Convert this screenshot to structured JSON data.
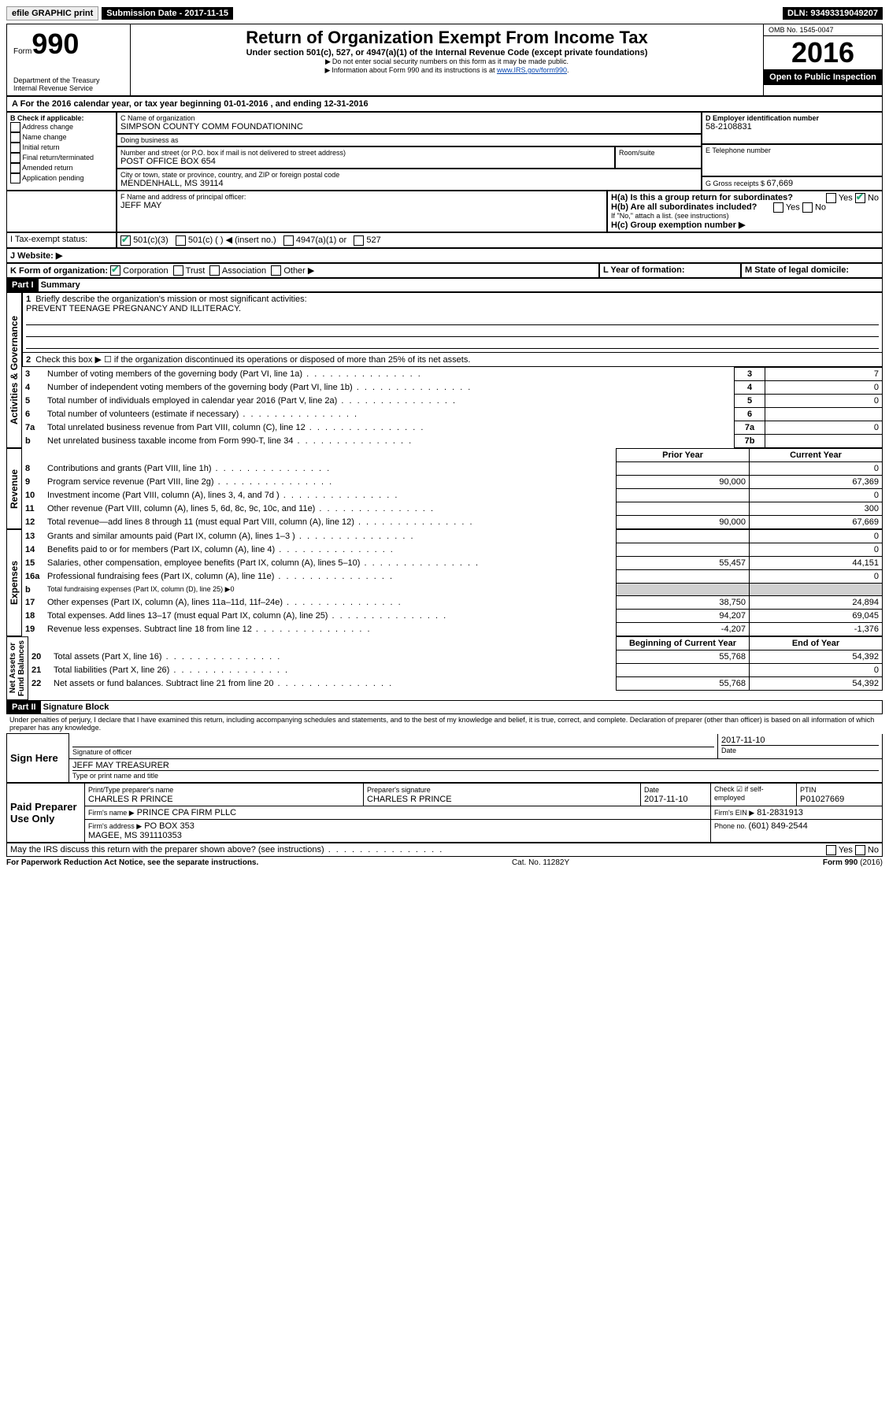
{
  "topbar": {
    "efile": "efile GRAPHIC print",
    "subdate_lbl": "Submission Date - ",
    "subdate": "2017-11-15",
    "dln_lbl": "DLN: ",
    "dln": "93493319049207"
  },
  "header": {
    "form_word": "Form",
    "form_no": "990",
    "dept": "Department of the Treasury\nInternal Revenue Service",
    "title": "Return of Organization Exempt From Income Tax",
    "subtitle": "Under section 501(c), 527, or 4947(a)(1) of the Internal Revenue Code (except private foundations)",
    "note1": "Do not enter social security numbers on this form as it may be made public.",
    "note2": "Information about Form 990 and its instructions is at ",
    "note2_link": "www.IRS.gov/form990",
    "omb_lbl": "OMB No. ",
    "omb": "1545-0047",
    "year": "2016",
    "open": "Open to Public Inspection"
  },
  "lineA": {
    "text": "For the 2016 calendar year, or tax year beginning ",
    "begin": "01-01-2016",
    "mid": " , and ending ",
    "end": "12-31-2016"
  },
  "boxB": {
    "hdr": "B Check if applicable:",
    "items": [
      "Address change",
      "Name change",
      "Initial return",
      "Final return/terminated",
      "Amended return",
      "Application pending"
    ]
  },
  "boxC": {
    "name_lbl": "C Name of organization",
    "name": "SIMPSON COUNTY COMM FOUNDATIONINC",
    "dba_lbl": "Doing business as",
    "dba": "",
    "street_lbl": "Number and street (or P.O. box if mail is not delivered to street address)",
    "street": "POST OFFICE BOX 654",
    "room_lbl": "Room/suite",
    "city_lbl": "City or town, state or province, country, and ZIP or foreign postal code",
    "city": "MENDENHALL, MS  39114"
  },
  "boxD": {
    "lbl": "D Employer identification number",
    "val": "58-2108831"
  },
  "boxE": {
    "lbl": "E Telephone number",
    "val": ""
  },
  "boxG": {
    "lbl": "G Gross receipts $ ",
    "val": "67,669"
  },
  "boxF": {
    "lbl": "F  Name and address of principal officer:",
    "val": "JEFF MAY"
  },
  "boxH": {
    "a": "H(a)  Is this a group return for subordinates?",
    "a_yes": "Yes",
    "a_no": "No",
    "b": "H(b)  Are all subordinates included?",
    "b_yes": "Yes",
    "b_no": "No",
    "b_note": "If \"No,\" attach a list. (see instructions)",
    "c": "H(c)  Group exemption number ▶"
  },
  "boxI": {
    "lbl": "I  Tax-exempt status:",
    "opts": [
      "501(c)(3)",
      "501(c) (  ) ◀ (insert no.)",
      "4947(a)(1) or",
      "527"
    ]
  },
  "boxJ": {
    "lbl": "J  Website: ▶"
  },
  "boxK": {
    "lbl": "K Form of organization:",
    "opts": [
      "Corporation",
      "Trust",
      "Association",
      "Other ▶"
    ]
  },
  "boxL": {
    "lbl": "L Year of formation:"
  },
  "boxM": {
    "lbl": "M State of legal domicile:"
  },
  "part1": {
    "hdr": "Part I",
    "title": "Summary"
  },
  "sec_ag": "Activities & Governance",
  "l1": {
    "n": "1",
    "t": "Briefly describe the organization's mission or most significant activities:",
    "v": "PREVENT TEENAGE PREGNANCY AND ILLITERACY."
  },
  "l2": {
    "n": "2",
    "t": "Check this box ▶ ☐  if the organization discontinued its operations or disposed of more than 25% of its net assets."
  },
  "lines_ag": [
    {
      "n": "3",
      "t": "Number of voting members of the governing body (Part VI, line 1a)",
      "box": "3",
      "v": "7"
    },
    {
      "n": "4",
      "t": "Number of independent voting members of the governing body (Part VI, line 1b)",
      "box": "4",
      "v": "0"
    },
    {
      "n": "5",
      "t": "Total number of individuals employed in calendar year 2016 (Part V, line 2a)",
      "box": "5",
      "v": "0"
    },
    {
      "n": "6",
      "t": "Total number of volunteers (estimate if necessary)",
      "box": "6",
      "v": ""
    },
    {
      "n": "7a",
      "t": "Total unrelated business revenue from Part VIII, column (C), line 12",
      "box": "7a",
      "v": "0"
    },
    {
      "n": "b",
      "t": "Net unrelated business taxable income from Form 990-T, line 34",
      "box": "7b",
      "v": ""
    }
  ],
  "sec_rev": "Revenue",
  "colhdr": {
    "py": "Prior Year",
    "cy": "Current Year"
  },
  "lines_rev": [
    {
      "n": "8",
      "t": "Contributions and grants (Part VIII, line 1h)",
      "py": "",
      "cy": "0"
    },
    {
      "n": "9",
      "t": "Program service revenue (Part VIII, line 2g)",
      "py": "90,000",
      "cy": "67,369"
    },
    {
      "n": "10",
      "t": "Investment income (Part VIII, column (A), lines 3, 4, and 7d )",
      "py": "",
      "cy": "0"
    },
    {
      "n": "11",
      "t": "Other revenue (Part VIII, column (A), lines 5, 6d, 8c, 9c, 10c, and 11e)",
      "py": "",
      "cy": "300"
    },
    {
      "n": "12",
      "t": "Total revenue—add lines 8 through 11 (must equal Part VIII, column (A), line 12)",
      "py": "90,000",
      "cy": "67,669"
    }
  ],
  "sec_exp": "Expenses",
  "lines_exp": [
    {
      "n": "13",
      "t": "Grants and similar amounts paid (Part IX, column (A), lines 1–3 )",
      "py": "",
      "cy": "0"
    },
    {
      "n": "14",
      "t": "Benefits paid to or for members (Part IX, column (A), line 4)",
      "py": "",
      "cy": "0"
    },
    {
      "n": "15",
      "t": "Salaries, other compensation, employee benefits (Part IX, column (A), lines 5–10)",
      "py": "55,457",
      "cy": "44,151"
    },
    {
      "n": "16a",
      "t": "Professional fundraising fees (Part IX, column (A), line 11e)",
      "py": "",
      "cy": "0"
    },
    {
      "n": "b",
      "t": "Total fundraising expenses (Part IX, column (D), line 25) ▶0",
      "py": "shade",
      "cy": "shade"
    },
    {
      "n": "17",
      "t": "Other expenses (Part IX, column (A), lines 11a–11d, 11f–24e)",
      "py": "38,750",
      "cy": "24,894"
    },
    {
      "n": "18",
      "t": "Total expenses. Add lines 13–17 (must equal Part IX, column (A), line 25)",
      "py": "94,207",
      "cy": "69,045"
    },
    {
      "n": "19",
      "t": "Revenue less expenses. Subtract line 18 from line 12",
      "py": "-4,207",
      "cy": "-1,376"
    }
  ],
  "sec_na": "Net Assets or\nFund Balances",
  "colhdr2": {
    "py": "Beginning of Current Year",
    "cy": "End of Year"
  },
  "lines_na": [
    {
      "n": "20",
      "t": "Total assets (Part X, line 16)",
      "py": "55,768",
      "cy": "54,392"
    },
    {
      "n": "21",
      "t": "Total liabilities (Part X, line 26)",
      "py": "",
      "cy": "0"
    },
    {
      "n": "22",
      "t": "Net assets or fund balances. Subtract line 21 from line 20",
      "py": "55,768",
      "cy": "54,392"
    }
  ],
  "part2": {
    "hdr": "Part II",
    "title": "Signature Block"
  },
  "perjury": "Under penalties of perjury, I declare that I have examined this return, including accompanying schedules and statements, and to the best of my knowledge and belief, it is true, correct, and complete. Declaration of preparer (other than officer) is based on all information of which preparer has any knowledge.",
  "sign": {
    "here": "Sign Here",
    "sig_lbl": "Signature of officer",
    "date_lbl": "Date",
    "date": "2017-11-10",
    "name": "JEFF MAY TREASURER",
    "name_lbl": "Type or print name and title"
  },
  "paid": {
    "hdr": "Paid Preparer Use Only",
    "prep_name_lbl": "Print/Type preparer's name",
    "prep_name": "CHARLES R PRINCE",
    "prep_sig_lbl": "Preparer's signature",
    "prep_sig": "CHARLES R PRINCE",
    "date_lbl": "Date",
    "date": "2017-11-10",
    "selfemp_lbl": "Check ☑ if self-employed",
    "ptin_lbl": "PTIN",
    "ptin": "P01027669",
    "firm_name_lbl": "Firm's name    ▶",
    "firm_name": "PRINCE CPA FIRM PLLC",
    "firm_ein_lbl": "Firm's EIN ▶",
    "firm_ein": "81-2831913",
    "firm_addr_lbl": "Firm's address ▶",
    "firm_addr": "PO BOX 353\nMAGEE, MS  391110353",
    "phone_lbl": "Phone no. ",
    "phone": "(601) 849-2544"
  },
  "irs_discuss": "May the IRS discuss this return with the preparer shown above? (see instructions)",
  "footer": {
    "l": "For Paperwork Reduction Act Notice, see the separate instructions.",
    "c": "Cat. No. 11282Y",
    "r": "Form 990 (2016)"
  }
}
